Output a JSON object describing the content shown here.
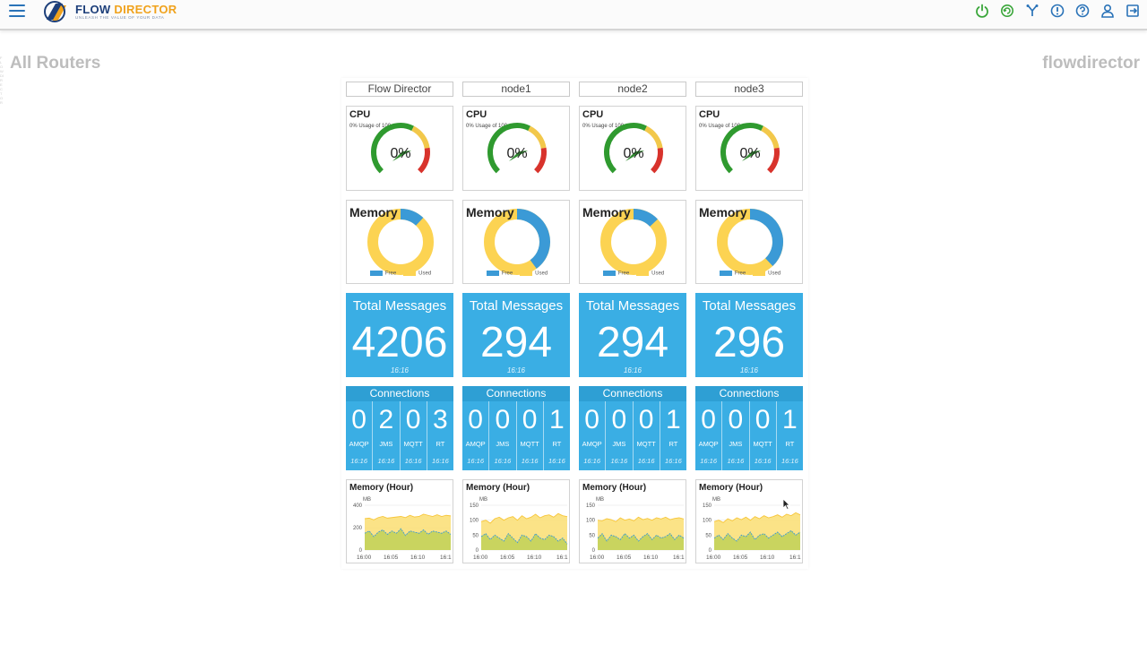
{
  "app": {
    "logo_name_a": "FLOW ",
    "logo_name_b": "DIRECTOR",
    "logo_tagline": "UNLEASH THE VALUE OF YOUR DATA",
    "accent": "#2a73b8"
  },
  "header": {
    "icons": [
      "power-icon",
      "refresh-icon",
      "fork-icon",
      "alert-icon",
      "help-icon",
      "user-icon",
      "logout-icon"
    ]
  },
  "page": {
    "title": "All Routers",
    "user": "flowdirector",
    "side_text": "FLOWDIRECTOR"
  },
  "colors": {
    "tile_blue": "#3aaee4",
    "free": "#3b9ad6",
    "used": "#fcd352",
    "gauge_green": "#2f9a2f",
    "gauge_yellow": "#f2c84b",
    "gauge_red": "#d8332c"
  },
  "labels": {
    "cpu": "CPU",
    "cpu_sub": "0% Usage of 100",
    "memory": "Memory",
    "free": "Free",
    "used": "Used",
    "total_messages": "Total Messages",
    "connections": "Connections",
    "memory_hour": "Memory (Hour)",
    "mb": "MB"
  },
  "routers": [
    {
      "name": "Flow Director",
      "cpu": "0%",
      "cpu_fraction": 0,
      "memory_free_fraction": 0.12,
      "total_messages": "4206",
      "total_time": "16:16",
      "connections": [
        {
          "label": "AMQP",
          "value": "0",
          "time": "16:16"
        },
        {
          "label": "JMS",
          "value": "2",
          "time": "16:16"
        },
        {
          "label": "MQTT",
          "value": "0",
          "time": "16:16"
        },
        {
          "label": "RT",
          "value": "3",
          "time": "16:16"
        }
      ],
      "hour_chart": {
        "yticks": [
          "400",
          "200",
          "0"
        ],
        "ymax": 400,
        "xticks": [
          "16:00",
          "16:05",
          "16:10",
          "16:1"
        ],
        "used": [
          280,
          285,
          270,
          290,
          300,
          285,
          290,
          295,
          300,
          290,
          310,
          295,
          300,
          320,
          310,
          300,
          315,
          300,
          310,
          305
        ],
        "free": [
          150,
          170,
          120,
          160,
          180,
          140,
          170,
          150,
          190,
          130,
          170,
          160,
          150,
          180,
          140,
          170,
          160,
          150,
          170,
          140
        ]
      }
    },
    {
      "name": "node1",
      "cpu": "0%",
      "cpu_fraction": 0,
      "memory_free_fraction": 0.4,
      "total_messages": "294",
      "total_time": "16:16",
      "connections": [
        {
          "label": "AMQP",
          "value": "0",
          "time": "16:16"
        },
        {
          "label": "JMS",
          "value": "0",
          "time": "16:16"
        },
        {
          "label": "MQTT",
          "value": "0",
          "time": "16:16"
        },
        {
          "label": "RT",
          "value": "1",
          "time": "16:16"
        }
      ],
      "hour_chart": {
        "yticks": [
          "150",
          "100",
          "50",
          "0"
        ],
        "ymax": 150,
        "xticks": [
          "16:00",
          "16:05",
          "16:10",
          "16:1"
        ],
        "used": [
          95,
          100,
          90,
          105,
          110,
          100,
          108,
          112,
          100,
          115,
          105,
          110,
          120,
          108,
          115,
          118,
          110,
          122,
          115,
          112
        ],
        "free": [
          45,
          55,
          35,
          50,
          40,
          30,
          55,
          40,
          25,
          50,
          45,
          30,
          55,
          40,
          35,
          50,
          45,
          30,
          40,
          20
        ]
      }
    },
    {
      "name": "node2",
      "cpu": "0%",
      "cpu_fraction": 0,
      "memory_free_fraction": 0.13,
      "total_messages": "294",
      "total_time": "16:16",
      "connections": [
        {
          "label": "AMQP",
          "value": "0",
          "time": "16:16"
        },
        {
          "label": "JMS",
          "value": "0",
          "time": "16:16"
        },
        {
          "label": "MQTT",
          "value": "0",
          "time": "16:16"
        },
        {
          "label": "RT",
          "value": "1",
          "time": "16:16"
        }
      ],
      "hour_chart": {
        "yticks": [
          "150",
          "100",
          "50",
          "0"
        ],
        "ymax": 150,
        "xticks": [
          "16:00",
          "16:05",
          "16:10",
          "16:1"
        ],
        "used": [
          100,
          98,
          105,
          102,
          95,
          108,
          100,
          104,
          98,
          110,
          102,
          106,
          100,
          108,
          104,
          110,
          102,
          106,
          108,
          104
        ],
        "free": [
          40,
          55,
          30,
          50,
          45,
          35,
          55,
          40,
          50,
          30,
          45,
          55,
          35,
          50,
          40,
          45,
          55,
          35,
          50,
          40
        ]
      }
    },
    {
      "name": "node3",
      "cpu": "0%",
      "cpu_fraction": 0,
      "memory_free_fraction": 0.38,
      "total_messages": "296",
      "total_time": "16:16",
      "connections": [
        {
          "label": "AMQP",
          "value": "0",
          "time": "16:16"
        },
        {
          "label": "JMS",
          "value": "0",
          "time": "16:16"
        },
        {
          "label": "MQTT",
          "value": "0",
          "time": "16:16"
        },
        {
          "label": "RT",
          "value": "1",
          "time": "16:16"
        }
      ],
      "hour_chart": {
        "yticks": [
          "150",
          "100",
          "50",
          "0"
        ],
        "ymax": 150,
        "xticks": [
          "16:00",
          "16:05",
          "16:10",
          "16:1"
        ],
        "used": [
          95,
          100,
          92,
          105,
          98,
          108,
          102,
          110,
          100,
          112,
          105,
          115,
          108,
          112,
          118,
          110,
          120,
          115,
          125,
          118
        ],
        "free": [
          40,
          50,
          35,
          55,
          40,
          30,
          50,
          45,
          60,
          35,
          50,
          55,
          40,
          50,
          60,
          45,
          55,
          65,
          50,
          60
        ]
      }
    }
  ]
}
